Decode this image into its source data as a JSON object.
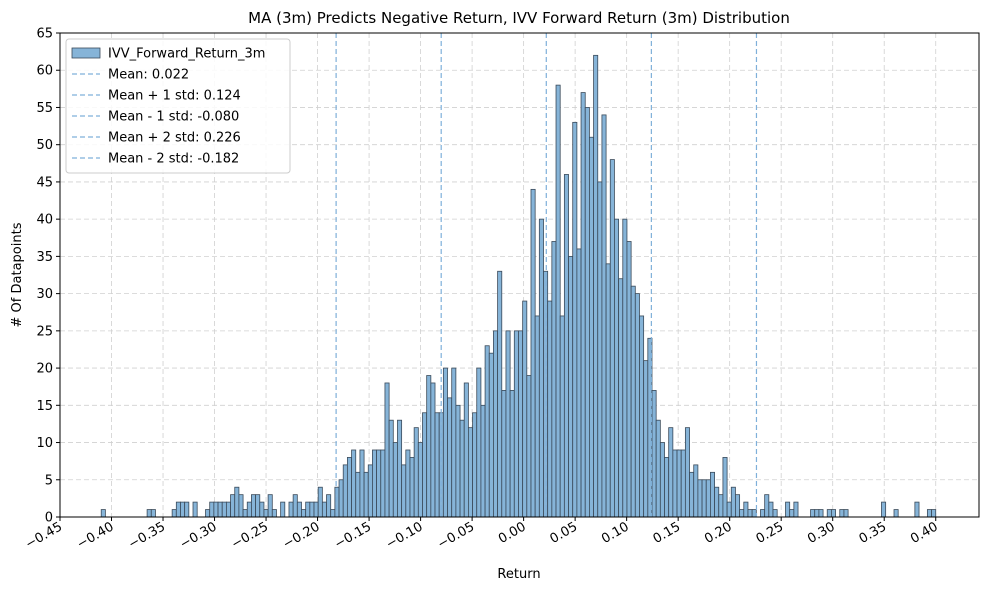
{
  "chart_data": {
    "type": "histogram",
    "title": "MA (3m) Predicts Negative Return, IVV Forward Return (3m) Distribution",
    "xlabel": "Return",
    "ylabel": "# Of Datapoints",
    "bins": [
      -0.41,
      -0.40595,
      -0.4019,
      -0.39785,
      -0.3938,
      -0.38975,
      -0.3857,
      -0.38165,
      -0.3776,
      -0.37355,
      -0.3695,
      -0.36545,
      -0.3614,
      -0.35735,
      -0.3533,
      -0.34925,
      -0.3452,
      -0.34115,
      -0.3371,
      -0.33305,
      -0.329,
      -0.32495,
      -0.3209,
      -0.31685,
      -0.3128,
      -0.30875,
      -0.3047,
      -0.30065,
      -0.2966,
      -0.29255,
      -0.2885,
      -0.28445,
      -0.2804,
      -0.27635,
      -0.2723,
      -0.26825,
      -0.2642,
      -0.26015,
      -0.2561,
      -0.25205,
      -0.248,
      -0.24395,
      -0.2399,
      -0.23585,
      -0.2318,
      -0.22775,
      -0.2237,
      -0.21965,
      -0.2156,
      -0.21155,
      -0.2075,
      -0.20345,
      -0.1994,
      -0.19535,
      -0.1913,
      -0.18725,
      -0.1832,
      -0.17915,
      -0.1751,
      -0.17105,
      -0.167,
      -0.16295,
      -0.1589,
      -0.15485,
      -0.1508,
      -0.14675,
      -0.1427,
      -0.13865,
      -0.1346,
      -0.13055,
      -0.1265,
      -0.12245,
      -0.1184,
      -0.11435,
      -0.1103,
      -0.10625,
      -0.1022,
      -0.09815,
      -0.0941,
      -0.09005,
      -0.086,
      -0.08195,
      -0.0779,
      -0.07385,
      -0.0698,
      -0.06575,
      -0.0617,
      -0.05765,
      -0.0536,
      -0.04955,
      -0.0455,
      -0.04145,
      -0.0374,
      -0.03335,
      -0.0293,
      -0.02525,
      -0.0212,
      -0.01715,
      -0.0131,
      -0.00905,
      -0.005,
      -0.00095,
      0.0031,
      0.00715,
      0.0112,
      0.01525,
      0.0193,
      0.02335,
      0.0274,
      0.03145,
      0.0355,
      0.03955,
      0.0436,
      0.04765,
      0.0517,
      0.05575,
      0.0598,
      0.06385,
      0.0679,
      0.07195,
      0.076,
      0.08005,
      0.0841,
      0.08815,
      0.0922,
      0.09625,
      0.1003,
      0.10435,
      0.1084,
      0.11245,
      0.1165,
      0.12055,
      0.1246,
      0.12865,
      0.1327,
      0.13675,
      0.1408,
      0.14485,
      0.1489,
      0.15295,
      0.157,
      0.16105,
      0.1651,
      0.16915,
      0.1732,
      0.17725,
      0.1813,
      0.18535,
      0.1894,
      0.19345,
      0.1975,
      0.20155,
      0.2056,
      0.20965,
      0.2137,
      0.21775,
      0.2218,
      0.22585,
      0.2299,
      0.23395,
      0.238,
      0.24205,
      0.2461,
      0.25015,
      0.2542,
      0.25825,
      0.2623,
      0.26635,
      0.2704,
      0.27445,
      0.2785,
      0.28255,
      0.2866,
      0.29065,
      0.2947,
      0.29875,
      0.3028,
      0.30685,
      0.3109,
      0.31495,
      0.319,
      0.32305,
      0.3271,
      0.33115,
      0.3352,
      0.33925,
      0.3433,
      0.34735,
      0.3514,
      0.35545,
      0.3595,
      0.36355,
      0.3676,
      0.37165,
      0.3757,
      0.37975,
      0.3838,
      0.38785,
      0.3919,
      0.39595,
      0.4
    ],
    "series": [
      {
        "name": "IVV_Forward_Return_3m",
        "color": "#86b4d8",
        "edgecolor": "#3a4a5a",
        "values": [
          1,
          0,
          0,
          0,
          0,
          0,
          0,
          0,
          0,
          0,
          0,
          1,
          1,
          0,
          0,
          0,
          0,
          1,
          2,
          2,
          2,
          0,
          2,
          0,
          0,
          1,
          2,
          2,
          2,
          2,
          2,
          3,
          4,
          3,
          1,
          2,
          3,
          3,
          2,
          1,
          3,
          1,
          0,
          2,
          0,
          2,
          3,
          2,
          1,
          2,
          2,
          2,
          4,
          2,
          3,
          1,
          4,
          5,
          7,
          8,
          9,
          6,
          9,
          6,
          7,
          9,
          9,
          9,
          18,
          13,
          10,
          13,
          7,
          9,
          8,
          12,
          10,
          14,
          19,
          18,
          14,
          14,
          20,
          16,
          20,
          15,
          13,
          18,
          12,
          14,
          20,
          15,
          23,
          22,
          25,
          33,
          17,
          25,
          17,
          25,
          25,
          29,
          19,
          44,
          27,
          40,
          33,
          29,
          37,
          58,
          27,
          46,
          35,
          53,
          36,
          57,
          55,
          51,
          62,
          45,
          54,
          34,
          48,
          40,
          32,
          40,
          37,
          31,
          30,
          27,
          21,
          24,
          17,
          13,
          10,
          8,
          12,
          9,
          9,
          9,
          12,
          6,
          7,
          5,
          5,
          5,
          6,
          4,
          3,
          8,
          2,
          4,
          3,
          1,
          2,
          1,
          1,
          0,
          1,
          3,
          2,
          1,
          0,
          0,
          2,
          1,
          2,
          0,
          0,
          0,
          1,
          1,
          1,
          0,
          1,
          1,
          0,
          1,
          1,
          0,
          0,
          0,
          0,
          0,
          0,
          0,
          0,
          2,
          0,
          0,
          1,
          0,
          0,
          0,
          0,
          2,
          0,
          0,
          1,
          1
        ]
      }
    ],
    "vlines": [
      {
        "label": "Mean: 0.022",
        "value": 0.022
      },
      {
        "label": "Mean + 1 std: 0.124",
        "value": 0.124
      },
      {
        "label": "Mean - 1 std: -0.080",
        "value": -0.08
      },
      {
        "label": "Mean + 2 std: 0.226",
        "value": 0.226
      },
      {
        "label": "Mean - 2 std: -0.182",
        "value": -0.182
      }
    ],
    "vline_color": "#7fb0da",
    "xlim": [
      -0.45,
      0.442
    ],
    "ylim": [
      0,
      65
    ],
    "xticks": [
      {
        "value": -0.45,
        "label": "−0.45"
      },
      {
        "value": -0.4,
        "label": "−0.40"
      },
      {
        "value": -0.35,
        "label": "−0.35"
      },
      {
        "value": -0.3,
        "label": "−0.30"
      },
      {
        "value": -0.25,
        "label": "−0.25"
      },
      {
        "value": -0.2,
        "label": "−0.20"
      },
      {
        "value": -0.15,
        "label": "−0.15"
      },
      {
        "value": -0.1,
        "label": "−0.10"
      },
      {
        "value": -0.05,
        "label": "−0.05"
      },
      {
        "value": 0,
        "label": "0.00"
      },
      {
        "value": 0.05,
        "label": "0.05"
      },
      {
        "value": 0.1,
        "label": "0.10"
      },
      {
        "value": 0.15,
        "label": "0.15"
      },
      {
        "value": 0.2,
        "label": "0.20"
      },
      {
        "value": 0.25,
        "label": "0.25"
      },
      {
        "value": 0.3,
        "label": "0.30"
      },
      {
        "value": 0.35,
        "label": "0.35"
      },
      {
        "value": 0.4,
        "label": "0.40"
      }
    ],
    "yticks": [
      0,
      5,
      10,
      15,
      20,
      25,
      30,
      35,
      40,
      45,
      50,
      55,
      60,
      65
    ],
    "grid": true,
    "legend": "upper left"
  }
}
